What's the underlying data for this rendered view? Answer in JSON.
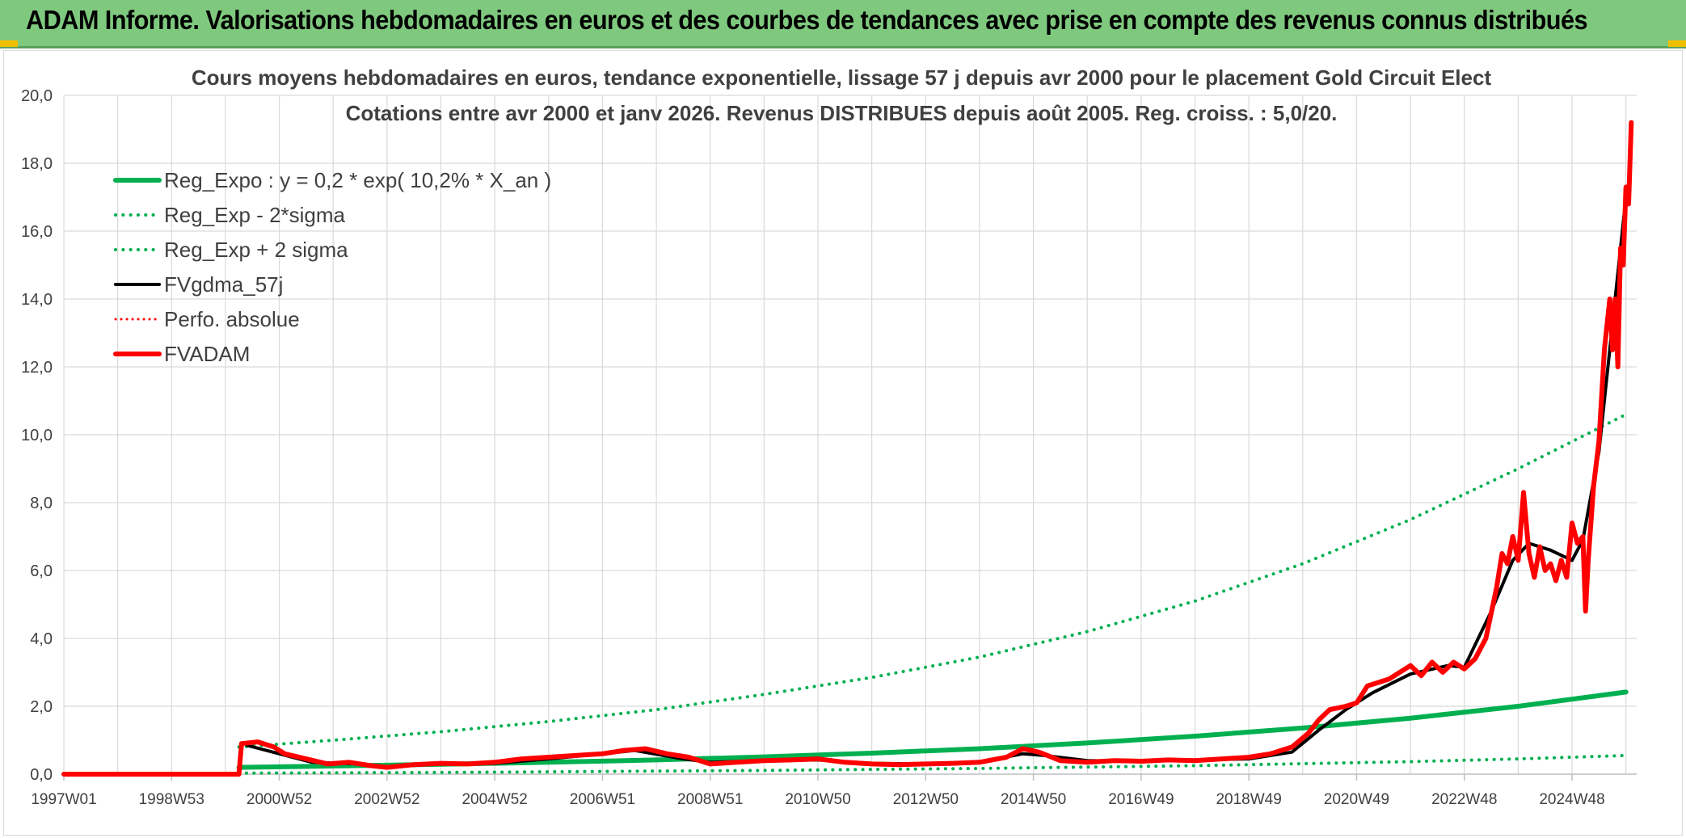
{
  "banner": {
    "title": "ADAM Informe. Valorisations hebdomadaires en euros et des courbes de tendances avec prise en compte des revenus connus distribués"
  },
  "colors": {
    "banner_bg": "#7fc97f",
    "green": "#00b050",
    "black": "#000000",
    "red": "#ff0000",
    "grid": "#d9d9d9"
  },
  "chart_data": {
    "type": "line",
    "title": "Cours moyens hebdomadaires en euros, tendance exponentielle, lissage 57 j depuis avr 2000 pour le placement Gold Circuit Elect",
    "subtitle": "Cotations entre avr 2000 et janv 2026. Revenus DISTRIBUES depuis août 2005. Reg. croiss. : 5,0/20.",
    "xlabel": "",
    "ylabel": "",
    "xlim": [
      1997.0,
      2026.2
    ],
    "ylim": [
      0,
      20
    ],
    "grid": true,
    "legend_position": "top-left",
    "y_ticks": [
      "0,0",
      "2,0",
      "4,0",
      "6,0",
      "8,0",
      "10,0",
      "12,0",
      "14,0",
      "16,0",
      "18,0",
      "20,0"
    ],
    "x_ticks": [
      {
        "x": 1997.0,
        "label": "1997W01"
      },
      {
        "x": 1999.0,
        "label": "1998W53"
      },
      {
        "x": 2001.0,
        "label": "2000W52"
      },
      {
        "x": 2003.0,
        "label": "2002W52"
      },
      {
        "x": 2005.0,
        "label": "2004W52"
      },
      {
        "x": 2007.0,
        "label": "2006W51"
      },
      {
        "x": 2009.0,
        "label": "2008W51"
      },
      {
        "x": 2011.0,
        "label": "2010W50"
      },
      {
        "x": 2013.0,
        "label": "2012W50"
      },
      {
        "x": 2015.0,
        "label": "2014W50"
      },
      {
        "x": 2017.0,
        "label": "2016W49"
      },
      {
        "x": 2019.0,
        "label": "2018W49"
      },
      {
        "x": 2021.0,
        "label": "2020W49"
      },
      {
        "x": 2023.0,
        "label": "2022W48"
      },
      {
        "x": 2025.0,
        "label": "2024W48"
      }
    ],
    "series": [
      {
        "name": "Reg_Expo : y = 0,2 * exp( 10,2% *  X_an )",
        "color": "#00b050",
        "style": "solid",
        "width": 6,
        "x": [
          2000.25,
          2002,
          2004,
          2006,
          2008,
          2010,
          2012,
          2014,
          2016,
          2018,
          2020,
          2022,
          2024,
          2026.0
        ],
        "y": [
          0.2,
          0.24,
          0.29,
          0.35,
          0.42,
          0.51,
          0.62,
          0.75,
          0.92,
          1.12,
          1.36,
          1.65,
          2.0,
          2.42
        ]
      },
      {
        "name": "Reg_Exp - 2*sigma",
        "color": "#00b050",
        "style": "dotted",
        "width": 4,
        "x": [
          2000.25,
          2002,
          2004,
          2006,
          2008,
          2010,
          2012,
          2014,
          2016,
          2018,
          2020,
          2022,
          2024,
          2026.0
        ],
        "y": [
          0.03,
          0.04,
          0.05,
          0.07,
          0.09,
          0.11,
          0.14,
          0.17,
          0.21,
          0.25,
          0.31,
          0.37,
          0.45,
          0.55
        ]
      },
      {
        "name": "Reg_Exp + 2 sigma",
        "color": "#00b050",
        "style": "dotted",
        "width": 4,
        "x": [
          2000.25,
          2002,
          2004,
          2006,
          2008,
          2010,
          2012,
          2014,
          2016,
          2018,
          2020,
          2022,
          2024,
          2026.0
        ],
        "y": [
          0.8,
          1.0,
          1.25,
          1.55,
          1.9,
          2.35,
          2.85,
          3.45,
          4.2,
          5.1,
          6.2,
          7.5,
          9.0,
          10.6
        ]
      },
      {
        "name": "FVgdma_57j",
        "color": "#000000",
        "style": "solid",
        "width": 4,
        "x": [
          2000.4,
          2001.0,
          2001.6,
          2002.5,
          2003.0,
          2004.0,
          2005.0,
          2006.0,
          2007.0,
          2007.6,
          2008.5,
          2009.0,
          2010.0,
          2011.0,
          2012.0,
          2013.0,
          2014.0,
          2014.8,
          2015.2,
          2016.0,
          2017.0,
          2018.0,
          2019.0,
          2019.8,
          2020.3,
          2020.8,
          2021.3,
          2022.0,
          2022.7,
          2023.0,
          2023.5,
          2023.9,
          2024.2,
          2024.6,
          2025.0,
          2025.2,
          2025.5,
          2025.8,
          2026.0
        ],
        "y": [
          0.85,
          0.6,
          0.35,
          0.3,
          0.22,
          0.3,
          0.32,
          0.45,
          0.6,
          0.7,
          0.45,
          0.35,
          0.4,
          0.42,
          0.32,
          0.3,
          0.35,
          0.6,
          0.55,
          0.4,
          0.38,
          0.42,
          0.45,
          0.65,
          1.3,
          1.9,
          2.4,
          2.95,
          3.2,
          3.15,
          4.8,
          6.3,
          6.8,
          6.6,
          6.3,
          6.9,
          9.5,
          14.0,
          17.0
        ]
      },
      {
        "name": "Perfo. absolue",
        "color": "#ff0000",
        "style": "dotted",
        "width": 3,
        "x": [],
        "y": []
      },
      {
        "name": "FVADAM",
        "color": "#ff0000",
        "style": "solid",
        "width": 6,
        "x": [
          1997.0,
          2000.25,
          2000.3,
          2000.6,
          2000.9,
          2001.1,
          2001.5,
          2001.9,
          2002.3,
          2002.7,
          2003.0,
          2003.5,
          2004.0,
          2004.5,
          2005.0,
          2005.5,
          2006.0,
          2006.5,
          2007.0,
          2007.4,
          2007.8,
          2008.2,
          2008.6,
          2009.0,
          2009.5,
          2010.0,
          2010.5,
          2011.0,
          2011.5,
          2012.0,
          2012.5,
          2013.0,
          2013.5,
          2014.0,
          2014.5,
          2014.8,
          2015.1,
          2015.5,
          2016.0,
          2016.5,
          2017.0,
          2017.5,
          2018.0,
          2018.5,
          2019.0,
          2019.4,
          2019.8,
          2020.1,
          2020.3,
          2020.5,
          2020.8,
          2021.0,
          2021.2,
          2021.4,
          2021.6,
          2021.8,
          2022.0,
          2022.2,
          2022.4,
          2022.6,
          2022.8,
          2023.0,
          2023.2,
          2023.4,
          2023.6,
          2023.7,
          2023.8,
          2023.9,
          2024.0,
          2024.1,
          2024.2,
          2024.3,
          2024.4,
          2024.5,
          2024.6,
          2024.7,
          2024.8,
          2024.9,
          2025.0,
          2025.1,
          2025.2,
          2025.25,
          2025.3,
          2025.4,
          2025.5,
          2025.6,
          2025.7,
          2025.75,
          2025.8,
          2025.85,
          2025.9,
          2025.95,
          2026.0,
          2026.05,
          2026.1
        ],
        "y": [
          0.0,
          0.0,
          0.9,
          0.95,
          0.8,
          0.6,
          0.45,
          0.3,
          0.35,
          0.25,
          0.2,
          0.28,
          0.32,
          0.3,
          0.35,
          0.45,
          0.5,
          0.55,
          0.6,
          0.7,
          0.75,
          0.6,
          0.5,
          0.3,
          0.35,
          0.4,
          0.42,
          0.45,
          0.35,
          0.3,
          0.28,
          0.3,
          0.32,
          0.35,
          0.5,
          0.75,
          0.65,
          0.4,
          0.35,
          0.4,
          0.38,
          0.42,
          0.4,
          0.45,
          0.5,
          0.6,
          0.8,
          1.2,
          1.6,
          1.9,
          2.0,
          2.1,
          2.6,
          2.7,
          2.8,
          3.0,
          3.2,
          2.9,
          3.3,
          3.0,
          3.3,
          3.1,
          3.4,
          4.0,
          5.5,
          6.5,
          6.2,
          7.0,
          6.3,
          8.3,
          6.5,
          5.8,
          6.7,
          6.0,
          6.2,
          5.7,
          6.3,
          5.8,
          7.4,
          6.8,
          7.0,
          4.8,
          6.3,
          8.5,
          9.8,
          12.5,
          14.0,
          12.5,
          14.0,
          12.0,
          15.5,
          15.0,
          17.3,
          16.8,
          19.2
        ]
      }
    ]
  }
}
